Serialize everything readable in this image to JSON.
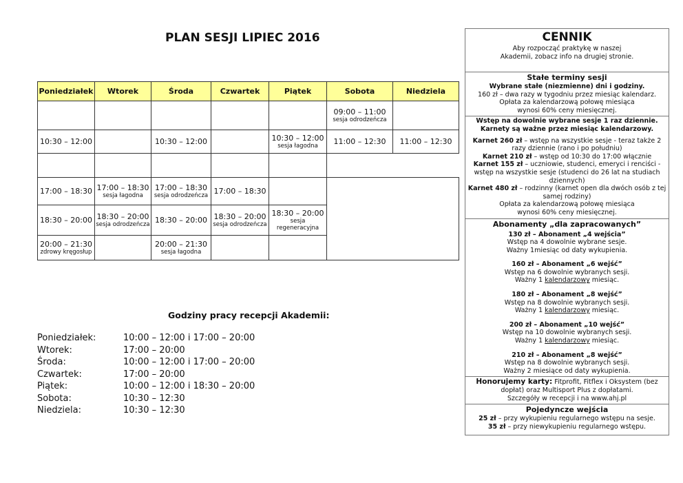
{
  "title": "PLAN SESJI LIPIEC 2016",
  "days": [
    "Poniedziałek",
    "Wtorek",
    "Środa",
    "Czwartek",
    "Piątek",
    "Sobota",
    "Niedziela"
  ],
  "rows": [
    [
      null,
      null,
      null,
      null,
      null,
      {
        "t": "09:00 – 11:00",
        "s": "sesja odrodzeńcza"
      },
      null
    ],
    [
      {
        "t": "10:30 – 12:00"
      },
      null,
      {
        "t": "10:30 – 12:00"
      },
      null,
      {
        "t": "10:30 – 12:00",
        "s": "sesja łagodna"
      },
      {
        "t": "11:00 – 12:30"
      },
      {
        "t": "11:00 – 12:30"
      }
    ],
    [
      null,
      null,
      null,
      null,
      null
    ],
    [
      {
        "t": "17:00 – 18:30"
      },
      {
        "t": "17:00 – 18:30",
        "s": "sesja łagodna"
      },
      {
        "t": "17:00 – 18:30",
        "s": "sesja odrodzeńcza"
      },
      {
        "t": "17:00 – 18:30"
      },
      null
    ],
    [
      {
        "t": "18:30 – 20:00"
      },
      {
        "t": "18:30 – 20:00",
        "s": "sesja odrodzeńcza"
      },
      {
        "t": "18:30 – 20:00"
      },
      {
        "t": "18:30 – 20:00",
        "s": "sesja odrodzeńcza"
      },
      {
        "t": "18:30 – 20:00",
        "s": "sesja regeneracyjna"
      }
    ],
    [
      {
        "t": "20:00 – 21:30",
        "s": "zdrowy kręgosłup"
      },
      null,
      {
        "t": "20:00 – 21:30",
        "s": "sesja łagodna"
      },
      null,
      null
    ]
  ],
  "reception": {
    "title": "Godziny pracy recepcji Akademii:",
    "rows": [
      {
        "day": "Poniedziałek:",
        "hours": "10:00 – 12:00 i 17:00 – 20:00"
      },
      {
        "day": "Wtorek:",
        "hours": "17:00 – 20:00"
      },
      {
        "day": "Środa:",
        "hours": "10:00 – 12:00 i 17:00 – 20:00"
      },
      {
        "day": "Czwartek:",
        "hours": "17:00 – 20:00"
      },
      {
        "day": "Piątek:",
        "hours": "10:00 – 12:00 i 18:30 – 20:00"
      },
      {
        "day": "Sobota:",
        "hours": "10:30 – 12:30"
      },
      {
        "day": "Niedziela:",
        "hours": "10:30 – 12:30"
      }
    ]
  },
  "cennik": {
    "title": "CENNIK",
    "intro": "Aby rozpocząć praktykę w naszej Akademii, zobacz info na drugiej stronie.",
    "stale": {
      "title": "Stałe terminy sesji",
      "bold": "Wybrane stałe (niezmienne) dni i godziny.",
      "l1": "160 zł – dwa razy w tygodniu przez miesiąc kalendarz.",
      "l2": "Opłata za kalendarzową połowę miesiąca wynosi 60% ceny miesięcznej."
    },
    "karnety": {
      "h1": "Wstęp na dowolnie wybrane sesje 1 raz dziennie.",
      "h2": "Karnety są ważne przez miesiąc kalendarzowy.",
      "items": [
        {
          "b": "Karnet 260 zł",
          "t": " – wstęp na wszystkie sesje - teraz także 2 razy dziennie (rano i po południu)"
        },
        {
          "b": "Karnet 210 zł",
          "t": " – wstęp od 10:30 do 17:00 włącznie"
        },
        {
          "b": "Karnet 155 zł",
          "t": " – uczniowie, studenci, emeryci i renciści - wstęp na wszystkie sesje (studenci do 26 lat na studiach dziennych)"
        },
        {
          "b": "Karnet 480 zł",
          "t": " – rodzinny (karnet open dla dwóch osób z tej samej rodziny)"
        }
      ],
      "note": "Opłata za kalendarzową połowę miesiąca wynosi 60% ceny miesięcznej."
    },
    "abonamenty": {
      "title": "Abonamenty „dla zapracowanych”",
      "items": [
        {
          "h": "130 zł – Abonament „4 wejścia”",
          "l1": "Wstęp na 4 dowolnie wybrane sesje.",
          "l2": "Ważny 1miesiąc od daty wykupienia."
        },
        {
          "h": "160 zł – Abonament „6 wejść”",
          "l1": "Wstęp na 6 dowolnie wybranych sesji.",
          "l2a": "Ważny 1 ",
          "u": "kalendarzowy",
          "l2b": " miesiąc."
        },
        {
          "h": "180 zł – Abonament „8 wejść”",
          "l1": "Wstęp na 8 dowolnie wybranych sesji.",
          "l2a": "Ważny 1 ",
          "u": "kalendarzowy",
          "l2b": " miesiąc."
        },
        {
          "h": "200 zł – Abonament „10 wejść”",
          "l1": "Wstęp na 10 dowolnie wybranych sesji.",
          "l2a": "Ważny 1 ",
          "u": "kalendarzowy",
          "l2b": " miesiąc."
        },
        {
          "h": "210 zł – Abonament „8 wejść”",
          "l1": "Wstęp na 8 dowolnie wybranych sesji.",
          "l2": "Ważny 2 miesiące od daty wykupienia."
        }
      ]
    },
    "karty": {
      "b": "Honorujemy karty:",
      "t": " Fitprofit, Fitflex i Oksystem (bez dopłat) oraz Multisport Plus z dopłatami.",
      "l2": "Szczegóły w recepcji i na www.ahj.pl"
    },
    "pojedyncze": {
      "title": "Pojedyncze wejścia",
      "items": [
        {
          "b": "25 zł",
          "t": " – przy wykupieniu regularnego wstępu na sesje."
        },
        {
          "b": "35 zł",
          "t": " – przy niewykupieniu regularnego wstępu."
        }
      ]
    }
  },
  "colors": {
    "header_bg": "#ffff99",
    "border": "#333333"
  }
}
